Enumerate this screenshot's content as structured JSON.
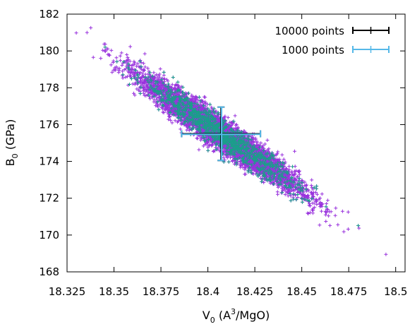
{
  "chart_data": {
    "type": "scatter",
    "title": "",
    "xlabel": {
      "base": "V",
      "sub": "0",
      "open": " (A",
      "sup": "3",
      "close": "/MgO)"
    },
    "ylabel": {
      "base": "B",
      "sub": "0",
      "rest": " (GPa)"
    },
    "xlim": [
      18.325,
      18.505
    ],
    "ylim": [
      168,
      182
    ],
    "x_ticks": [
      18.325,
      18.35,
      18.375,
      18.4,
      18.425,
      18.45,
      18.475,
      18.5
    ],
    "x_tick_labels": [
      "18.325",
      "18.35",
      "18.375",
      "18.4",
      "18.425",
      "18.45",
      "18.475",
      "18.5"
    ],
    "y_ticks": [
      168,
      170,
      172,
      174,
      176,
      178,
      180,
      182
    ],
    "y_tick_labels": [
      "168",
      "170",
      "172",
      "174",
      "176",
      "178",
      "180",
      "182"
    ],
    "grid": false,
    "legend_position": "top-right",
    "series": [
      {
        "name": "10000 points",
        "color": "#9933dd",
        "marker": "plus",
        "cloud": {
          "count": 9000,
          "mean_x": 18.407,
          "mean_y": 175.5,
          "sd_x": 0.0205,
          "sd_y": 1.5,
          "corr": -0.96
        },
        "errorbar": {
          "x": 18.407,
          "y": 175.5,
          "xerr": 0.021,
          "yerr": 1.45,
          "color": "#000000"
        }
      },
      {
        "name": "1000 points",
        "color": "#1a9e8a",
        "marker": "plus",
        "cloud": {
          "count": 1000,
          "mean_x": 18.407,
          "mean_y": 175.5,
          "sd_x": 0.0205,
          "sd_y": 1.5,
          "corr": -0.96
        },
        "errorbar": {
          "x": 18.407,
          "y": 175.5,
          "xerr": 0.021,
          "yerr": 1.45,
          "color": "#55b8e8"
        }
      }
    ]
  }
}
